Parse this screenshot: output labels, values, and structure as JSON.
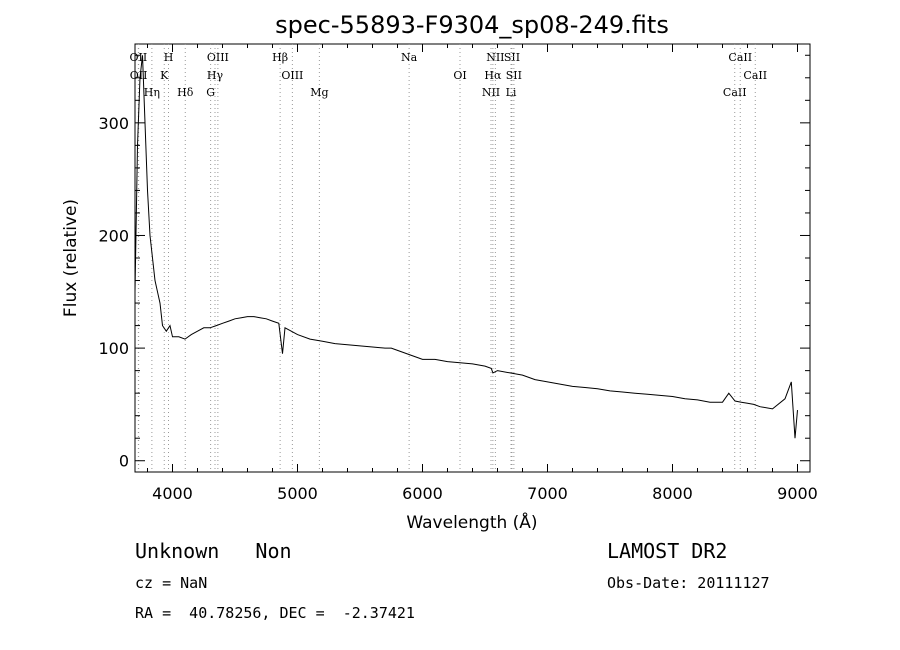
{
  "chart_data": {
    "type": "line",
    "title": "spec-55893-F9304_sp08-249.fits",
    "xlabel": "Wavelength (Å)",
    "ylabel": "Flux (relative)",
    "xlim": [
      3700,
      9100
    ],
    "ylim": [
      -10,
      370
    ],
    "x_ticks": [
      4000,
      5000,
      6000,
      7000,
      8000,
      9000
    ],
    "y_ticks": [
      0,
      100,
      200,
      300
    ],
    "grid": false,
    "series": [
      {
        "x": [
          3700,
          3720,
          3740,
          3760,
          3780,
          3800,
          3820,
          3840,
          3860,
          3880,
          3900,
          3920,
          3950,
          3980,
          4000,
          4050,
          4100,
          4150,
          4200,
          4250,
          4300,
          4350,
          4400,
          4450,
          4500,
          4550,
          4600,
          4650,
          4700,
          4750,
          4800,
          4850,
          4880,
          4900,
          4950,
          5000,
          5100,
          5200,
          5300,
          5400,
          5500,
          5600,
          5700,
          5750,
          5800,
          5850,
          5900,
          5950,
          6000,
          6100,
          6200,
          6300,
          6400,
          6500,
          6550,
          6563,
          6600,
          6700,
          6800,
          6900,
          7000,
          7100,
          7200,
          7300,
          7400,
          7500,
          7600,
          7700,
          7800,
          7900,
          8000,
          8100,
          8200,
          8300,
          8400,
          8450,
          8500,
          8550,
          8600,
          8650,
          8700,
          8800,
          8900,
          8950,
          8980,
          9000
        ],
        "y": [
          150,
          280,
          340,
          360,
          300,
          240,
          200,
          180,
          160,
          150,
          140,
          120,
          115,
          120,
          110,
          110,
          108,
          112,
          115,
          118,
          118,
          120,
          122,
          124,
          126,
          127,
          128,
          128,
          127,
          126,
          124,
          122,
          95,
          118,
          115,
          112,
          108,
          106,
          104,
          103,
          102,
          101,
          100,
          100,
          98,
          96,
          94,
          92,
          90,
          90,
          88,
          87,
          86,
          84,
          82,
          78,
          80,
          78,
          76,
          72,
          70,
          68,
          66,
          65,
          64,
          62,
          61,
          60,
          59,
          58,
          57,
          55,
          54,
          52,
          52,
          60,
          53,
          52,
          51,
          50,
          48,
          46,
          55,
          70,
          20,
          45
        ]
      }
    ],
    "line_markers": [
      {
        "label": "OII",
        "x": 3727
      },
      {
        "label": "OII",
        "x": 3729
      },
      {
        "label": "Hη",
        "x": 3835
      },
      {
        "label": "H",
        "x": 3968
      },
      {
        "label": "K",
        "x": 3934
      },
      {
        "label": "Hδ",
        "x": 4102
      },
      {
        "label": "OIII",
        "x": 4363
      },
      {
        "label": "Hγ",
        "x": 4340
      },
      {
        "label": "G",
        "x": 4305
      },
      {
        "label": "Hβ",
        "x": 4861
      },
      {
        "label": "OIII",
        "x": 4959
      },
      {
        "label": "Mg",
        "x": 5175
      },
      {
        "label": "Na",
        "x": 5893
      },
      {
        "label": "OI",
        "x": 6300
      },
      {
        "label": "NII",
        "x": 6548
      },
      {
        "label": "NII",
        "x": 6583
      },
      {
        "label": "Hα",
        "x": 6563
      },
      {
        "label": "Li",
        "x": 6708
      },
      {
        "label": "SII",
        "x": 6716
      },
      {
        "label": "SII",
        "x": 6731
      },
      {
        "label": "CaII",
        "x": 8498
      },
      {
        "label": "CaII",
        "x": 8542
      },
      {
        "label": "CaII",
        "x": 8662
      }
    ]
  },
  "info": {
    "class_text": "Unknown   Non",
    "cz_text": "cz = NaN",
    "radec_text": "RA =  40.78256, DEC =  -2.37421",
    "survey_text": "LAMOST DR2",
    "obsdate_text": "Obs-Date: 20111127"
  }
}
